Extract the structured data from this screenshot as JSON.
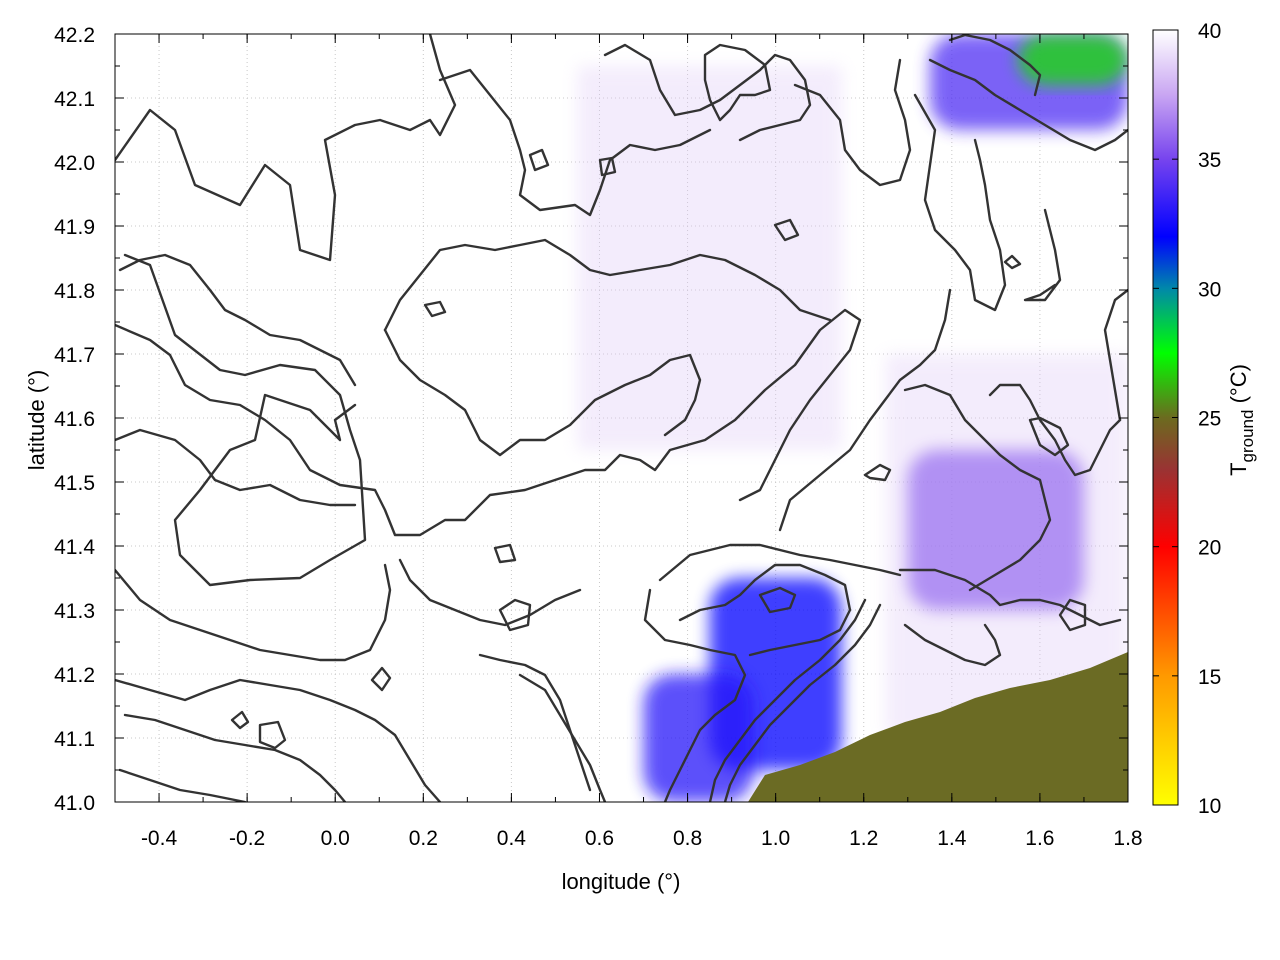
{
  "chart_data": {
    "type": "heatmap",
    "xlabel": "longitude (°)",
    "ylabel": "latitude (°)",
    "colorbar_label": "T",
    "colorbar_label_subscript": "ground",
    "colorbar_label_unit": " (°C)",
    "xlim": [
      -0.5,
      1.8
    ],
    "ylim": [
      41.0,
      42.2
    ],
    "xticks": [
      -0.4,
      -0.2,
      0.0,
      0.2,
      0.4,
      0.6,
      0.8,
      1.0,
      1.2,
      1.4,
      1.6,
      1.8
    ],
    "xtick_labels": [
      "-0.4",
      "-0.2",
      "0.0",
      "0.2",
      "0.4",
      "0.6",
      "0.8",
      "1.0",
      "1.2",
      "1.4",
      "1.6",
      "1.8"
    ],
    "yticks": [
      41.0,
      41.1,
      41.2,
      41.3,
      41.4,
      41.5,
      41.6,
      41.7,
      41.8,
      41.9,
      42.0,
      42.1,
      42.2
    ],
    "ytick_labels": [
      "41.0",
      "41.1",
      "41.2",
      "41.3",
      "41.4",
      "41.5",
      "41.6",
      "41.7",
      "41.8",
      "41.9",
      "42.0",
      "42.1",
      "42.2"
    ],
    "colorbar": {
      "range": [
        10,
        40
      ],
      "ticks": [
        10,
        15,
        20,
        25,
        30,
        35,
        40
      ],
      "tick_labels": [
        "10",
        "15",
        "20",
        "25",
        "30",
        "35",
        "40"
      ],
      "stops": [
        {
          "value": 10,
          "color": "#ffff00"
        },
        {
          "value": 15,
          "color": "#ff9900"
        },
        {
          "value": 20,
          "color": "#ff0000"
        },
        {
          "value": 23,
          "color": "#993333"
        },
        {
          "value": 25,
          "color": "#6b6b1f"
        },
        {
          "value": 27.5,
          "color": "#00ff00"
        },
        {
          "value": 30,
          "color": "#0088aa"
        },
        {
          "value": 32,
          "color": "#0000ff"
        },
        {
          "value": 35,
          "color": "#7744ee"
        },
        {
          "value": 37.5,
          "color": "#c9a6f2"
        },
        {
          "value": 40,
          "color": "#ffffff"
        }
      ]
    },
    "grid": true,
    "sea_color": "#6b6b24",
    "temperature_regions": [
      {
        "label": "hot_inland_southwest",
        "lon": [
          0.85,
          1.15
        ],
        "lat": [
          41.05,
          41.35
        ],
        "temp_C": 32
      },
      {
        "label": "hot_coast_south",
        "lon": [
          0.7,
          0.95
        ],
        "lat": [
          41.0,
          41.2
        ],
        "temp_C": 33
      },
      {
        "label": "warm_east_band",
        "lon": [
          1.3,
          1.7
        ],
        "lat": [
          41.3,
          41.55
        ],
        "temp_C": 35
      },
      {
        "label": "warm_northeast",
        "lon": [
          1.35,
          1.8
        ],
        "lat": [
          42.05,
          42.2
        ],
        "temp_C": 34
      },
      {
        "label": "cool_northeast_corner",
        "lon": [
          1.55,
          1.8
        ],
        "lat": [
          42.12,
          42.2
        ],
        "temp_C": 27
      },
      {
        "label": "sea",
        "lon": [
          0.92,
          1.8
        ],
        "lat": [
          41.0,
          41.23
        ],
        "temp_C": 24.5
      }
    ]
  }
}
